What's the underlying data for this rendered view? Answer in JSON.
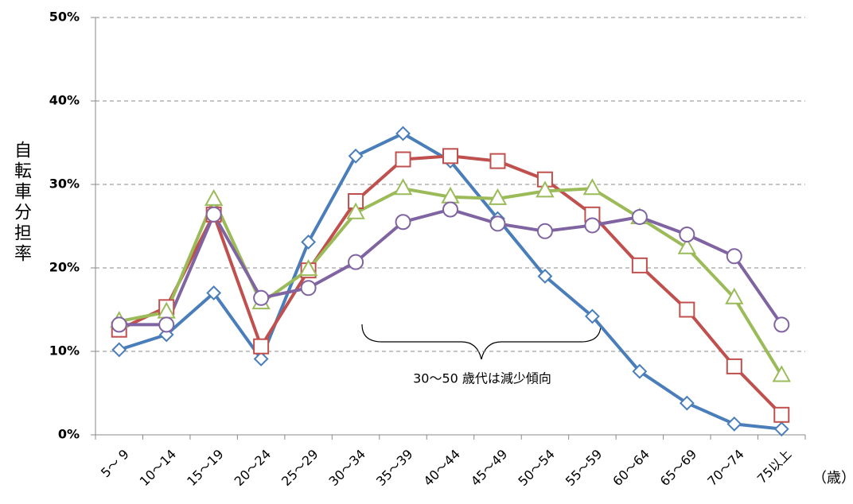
{
  "chart_data": {
    "type": "line",
    "ylabel": "自転車分担率",
    "xunit": "（歳）",
    "annotation": "30～50 歳代は減少傾向",
    "categories": [
      "5～ 9",
      "10～14",
      "15～19",
      "20～24",
      "25～29",
      "30～34",
      "35～39",
      "40～44",
      "45～49",
      "50～54",
      "55～59",
      "60～64",
      "65～69",
      "70～74",
      "75以上"
    ],
    "series": [
      {
        "color": "#4a7ebb",
        "marker": "diamond",
        "values": [
          10.2,
          12.0,
          17.0,
          9.1,
          23.1,
          33.4,
          36.1,
          32.8,
          25.9,
          19.0,
          14.2,
          7.6,
          3.8,
          1.3,
          0.7
        ]
      },
      {
        "color": "#c0504d",
        "marker": "square",
        "values": [
          12.6,
          15.3,
          26.4,
          10.6,
          19.7,
          28.0,
          33.0,
          33.4,
          32.8,
          30.6,
          26.4,
          20.3,
          15.0,
          8.2,
          2.4
        ]
      },
      {
        "color": "#9bbb59",
        "marker": "triangle",
        "values": [
          13.6,
          14.7,
          28.2,
          15.8,
          19.8,
          26.6,
          29.5,
          28.5,
          28.3,
          29.2,
          29.5,
          26.0,
          22.4,
          16.4,
          7.1
        ]
      },
      {
        "color": "#8064a2",
        "marker": "circle",
        "values": [
          13.2,
          13.2,
          26.4,
          16.4,
          17.6,
          20.7,
          25.5,
          27.0,
          25.3,
          24.4,
          25.1,
          26.1,
          24.0,
          21.4,
          13.2
        ]
      }
    ],
    "ylim": [
      0,
      50
    ],
    "yticks": [
      {
        "value": 0,
        "label": "0%"
      },
      {
        "value": 10,
        "label": "10%"
      },
      {
        "value": 20,
        "label": "20%"
      },
      {
        "value": 30,
        "label": "30%"
      },
      {
        "value": 40,
        "label": "40%"
      },
      {
        "value": 50,
        "label": "50%"
      }
    ],
    "grid": true
  }
}
